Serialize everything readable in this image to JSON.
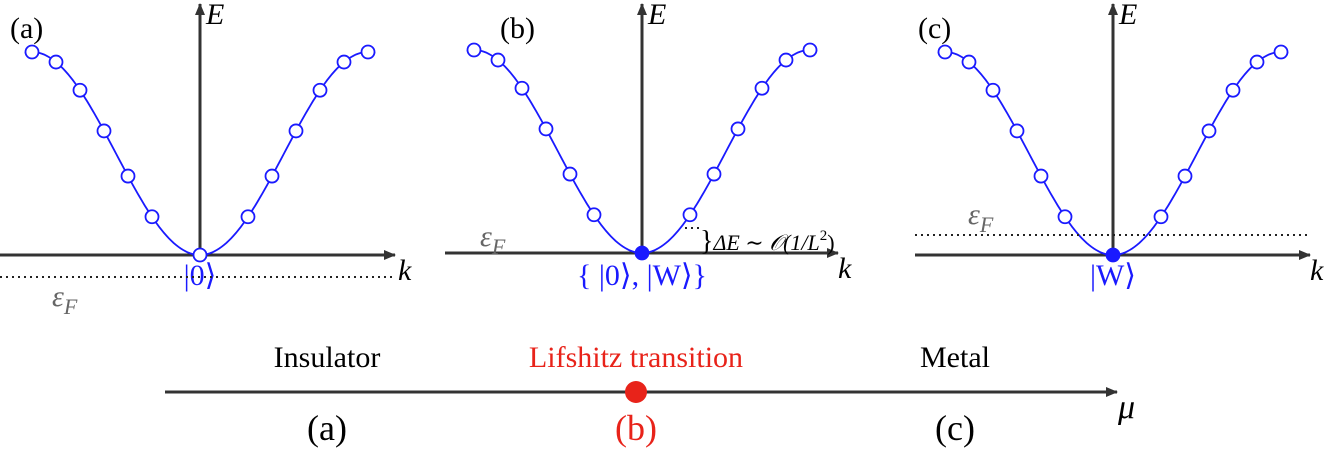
{
  "panels": [
    {
      "label": "(a)",
      "e_axis": "E",
      "k_axis": "k",
      "fermi": {
        "symbol": "ε",
        "sub": "F"
      },
      "state": "|0⟩"
    },
    {
      "label": "(b)",
      "e_axis": "E",
      "k_axis": "k",
      "fermi": {
        "symbol": "ε",
        "sub": "F"
      },
      "state": "{ |0⟩, |W⟩}",
      "annotation": {
        "brace": "}",
        "text": "ΔE ∼ 𝒪(1/L",
        "sup": "2",
        "end": ")"
      }
    },
    {
      "label": "(c)",
      "e_axis": "E",
      "k_axis": "k",
      "fermi": {
        "symbol": "ε",
        "sub": "F"
      },
      "state": "|W⟩"
    }
  ],
  "phase_axis": {
    "symbol": "μ",
    "phases": [
      {
        "name": "Insulator",
        "label": "(a)"
      },
      {
        "name": "Lifshitz transition",
        "label": "(b)"
      },
      {
        "name": "Metal",
        "label": "(c)"
      }
    ]
  }
}
